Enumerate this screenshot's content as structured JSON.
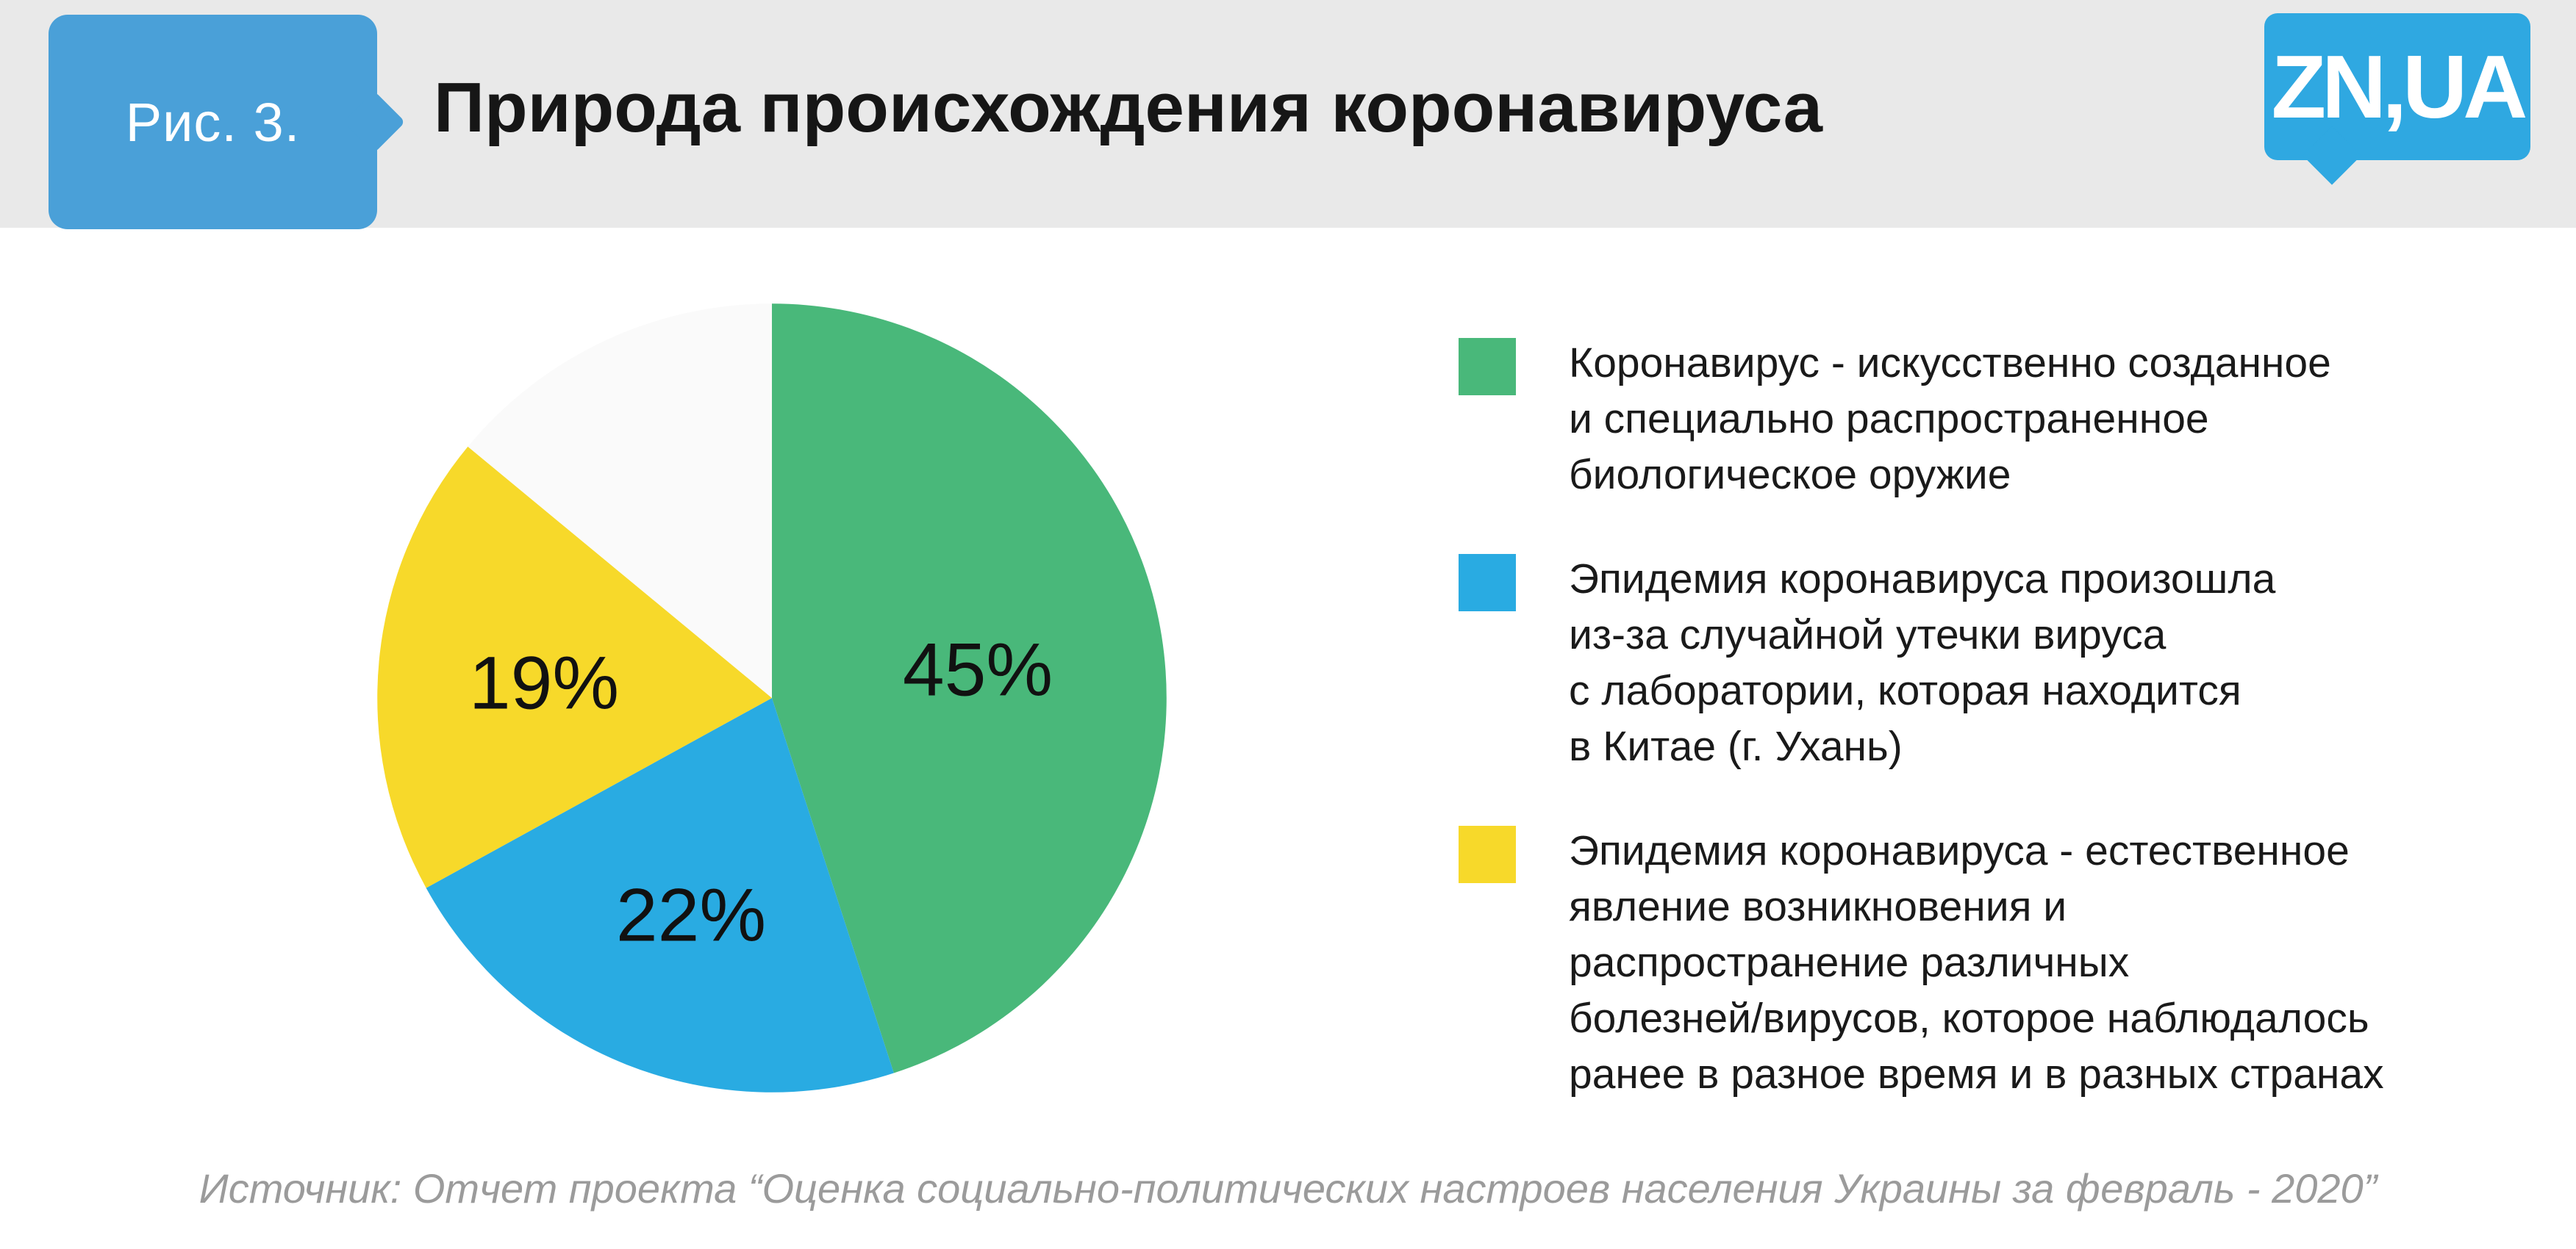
{
  "header": {
    "figure_label": "Рис. 3.",
    "title": "Природа происхождения коронавируса",
    "logo_text": "ZN,UA"
  },
  "footer": {
    "source": "Источник: Отчет проекта “Оценка социально-политических настроев населения Украины за февраль - 2020”"
  },
  "colors": {
    "header_band": "#e9e9e9",
    "figure_badge": "#4aa0d8",
    "logo_bg": "#2fa8e1",
    "slice_green": "#49b87a",
    "slice_blue": "#29abe2",
    "slice_yellow": "#f7d92a",
    "slice_rest": "#fafafa",
    "label_text": "#111111",
    "source_text": "#9b9b9b"
  },
  "chart_data": {
    "type": "pie",
    "title": "Природа происхождения коронавируса",
    "values_unit": "percent",
    "direction": "clockwise",
    "start_angle_deg": 0,
    "legend_position": "right",
    "slices": [
      {
        "value": 45,
        "data_label": "45%",
        "color": "#49b87a",
        "label": "Коронавирус - искусственно созданное\nи специально распространенное\nбиологическое оружие"
      },
      {
        "value": 22,
        "data_label": "22%",
        "color": "#29abe2",
        "label": "Эпидемия коронавируса произошла\nиз-за случайной утечки вируса\nс лаборатории, которая находится\nв Китае (г. Ухань)"
      },
      {
        "value": 19,
        "data_label": "19%",
        "color": "#f7d92a",
        "label": "Эпидемия коронавируса - естественное\nявление возникновения и\nраспространение различных\nболезней/вирусов, которое наблюдалось\nранее в разное время и в разных странах"
      },
      {
        "value": 14,
        "data_label": "",
        "color": "#fafafa",
        "label": ""
      }
    ]
  }
}
